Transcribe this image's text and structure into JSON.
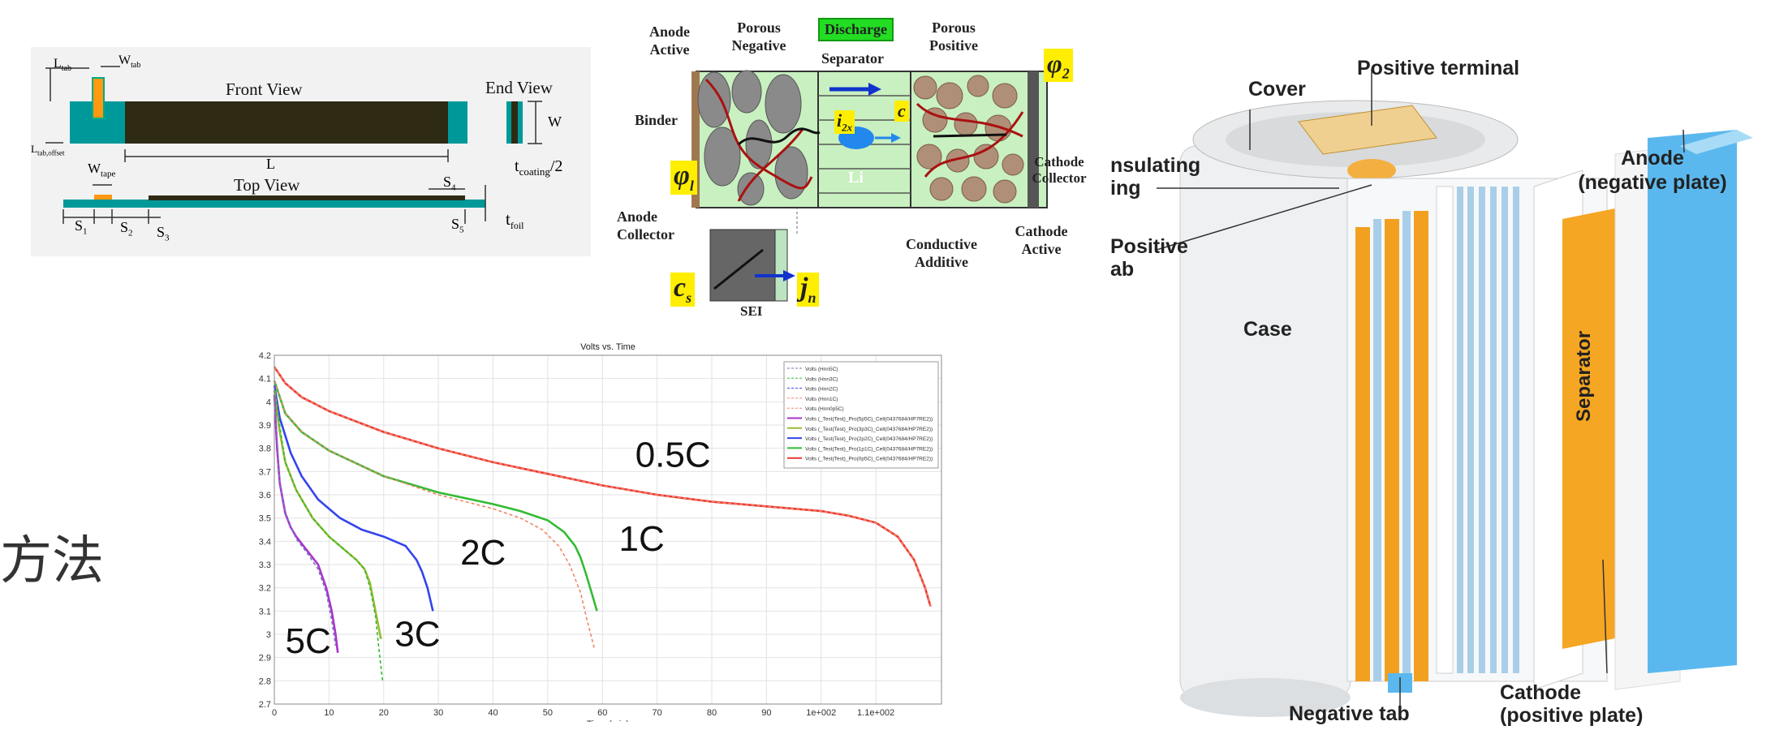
{
  "cjk_text": "方法",
  "dims": {
    "front_view": "Front View",
    "end_view": "End View",
    "top_view": "Top View",
    "l_tab": "L",
    "l_tab_sub": "tab",
    "w_tab": "W",
    "w_tab_sub": "tab",
    "l_tab_offset": "L",
    "l_tab_offset_sub": "tab,offset",
    "L": "L",
    "W": "W",
    "w_tape": "W",
    "w_tape_sub": "tape",
    "t_coating": "t",
    "t_coating_sub": "coating",
    "t_coating_suffix": "/2",
    "t_foil": "t",
    "t_foil_sub": "foil",
    "s1": "S",
    "s1_sub": "1",
    "s2": "S",
    "s2_sub": "2",
    "s3": "S",
    "s3_sub": "3",
    "s4": "S",
    "s4_sub": "4",
    "s5": "S",
    "s5_sub": "5"
  },
  "cell": {
    "anode_active": "Anode Active",
    "porous_negative": "Porous Negative",
    "discharge": "Discharge",
    "separator": "Separator",
    "porous_positive": "Porous Positive",
    "binder": "Binder",
    "anode_collector": "Anode Collector",
    "conductive_additive": "Conductive Additive",
    "cathode_active": "Cathode Active",
    "cathode_collector": "Cathode Collector",
    "sei": "SEI",
    "phi_l": "φ",
    "phi_l_sub": "l",
    "phi_2": "φ",
    "phi_2_sub": "2",
    "i2x": "i",
    "i2x_sub": "2x",
    "c": "c",
    "li": "Li",
    "cs": "c",
    "cs_sub": "s",
    "jn": "j",
    "jn_sub": "n"
  },
  "battery": {
    "cover": "Cover",
    "positive_terminal": "Positive terminal",
    "insulating_ring": "nsulating\ning",
    "positive_tab": "Positive\nab",
    "anode": "Anode\n(negative plate)",
    "case": "Case",
    "separator": "Separator",
    "negative_tab": "Negative tab",
    "cathode": "Cathode\n(positive plate)"
  },
  "chart_data": {
    "type": "line",
    "title": "Volts vs. Time",
    "xlabel": "Time (min)",
    "ylabel": "",
    "xlim": [
      0,
      122
    ],
    "ylim": [
      2.7,
      4.2
    ],
    "xticks": [
      "0",
      "10",
      "20",
      "30",
      "40",
      "50",
      "60",
      "70",
      "80",
      "90",
      "1e+002",
      "1.1e+002"
    ],
    "yticks": [
      "2.7",
      "2.8",
      "2.9",
      "3",
      "3.1",
      "3.2",
      "3.3",
      "3.4",
      "3.5",
      "3.6",
      "3.7",
      "3.8",
      "3.9",
      "4",
      "4.1",
      "4.2"
    ],
    "grid": true,
    "legend_position": "top-right",
    "legend": [
      "Volts (Hnn5C)",
      "Volts (Hnn3C)",
      "Volts (Hnn2C)",
      "Volts (Hnn1C)",
      "Volts (Hnn0p5C)",
      "Volts (_Test(Test)_Pro(5p5C)_Cell(0437684/HP7RE2))",
      "Volts (_Test(Test)_Pro(3p3C)_Cell(0437684/HP7RE2))",
      "Volts (_Test(Test)_Pro(2p2C)_Cell(0437684/HP7RE2))",
      "Volts (_Test(Test)_Pro(1p1C)_Cell(0437684/HP7RE2))",
      "Volts (_Test(Test)_Pro(0p5C)_Cell(0437684/HP7RE2))"
    ],
    "rate_labels": [
      {
        "text": "0.5C",
        "x": 66,
        "y": 3.72
      },
      {
        "text": "1C",
        "x": 63,
        "y": 3.36
      },
      {
        "text": "2C",
        "x": 34,
        "y": 3.3
      },
      {
        "text": "3C",
        "x": 22,
        "y": 2.95
      },
      {
        "text": "5C",
        "x": 2,
        "y": 2.92
      }
    ],
    "series": [
      {
        "rate": "0.5C",
        "color": "#ee3333",
        "dashed": false,
        "x": [
          0,
          2,
          5,
          10,
          20,
          30,
          40,
          50,
          60,
          70,
          80,
          90,
          100,
          105,
          110,
          114,
          117,
          119,
          120
        ],
        "y": [
          4.15,
          4.08,
          4.02,
          3.96,
          3.87,
          3.8,
          3.74,
          3.69,
          3.64,
          3.6,
          3.57,
          3.55,
          3.53,
          3.51,
          3.48,
          3.42,
          3.32,
          3.2,
          3.12
        ]
      },
      {
        "rate": "0.5C",
        "color": "#ee8866",
        "dashed": true,
        "x": [
          0,
          2,
          5,
          10,
          20,
          30,
          40,
          50,
          60,
          70,
          80,
          90,
          100,
          105,
          110,
          114,
          117,
          119,
          120
        ],
        "y": [
          4.15,
          4.08,
          4.02,
          3.96,
          3.87,
          3.8,
          3.74,
          3.69,
          3.64,
          3.6,
          3.57,
          3.55,
          3.53,
          3.51,
          3.48,
          3.42,
          3.32,
          3.2,
          3.12
        ]
      },
      {
        "rate": "1C",
        "color": "#33bb33",
        "dashed": false,
        "x": [
          0,
          2,
          5,
          10,
          20,
          30,
          40,
          45,
          50,
          53,
          55,
          56,
          57,
          58,
          59
        ],
        "y": [
          4.09,
          3.95,
          3.87,
          3.79,
          3.68,
          3.61,
          3.56,
          3.53,
          3.49,
          3.44,
          3.38,
          3.33,
          3.26,
          3.18,
          3.1
        ]
      },
      {
        "rate": "1C",
        "color": "#ee8866",
        "dashed": true,
        "x": [
          0,
          2,
          5,
          10,
          20,
          30,
          40,
          45,
          49,
          52,
          54,
          56,
          57,
          58.5
        ],
        "y": [
          4.09,
          3.95,
          3.87,
          3.79,
          3.68,
          3.6,
          3.54,
          3.5,
          3.45,
          3.38,
          3.3,
          3.18,
          3.08,
          2.94
        ]
      },
      {
        "rate": "2C",
        "color": "#3344ee",
        "dashed": false,
        "x": [
          0,
          1,
          3,
          5,
          8,
          12,
          16,
          20,
          24,
          26,
          27,
          28,
          29
        ],
        "y": [
          4.07,
          3.93,
          3.78,
          3.68,
          3.58,
          3.5,
          3.45,
          3.42,
          3.38,
          3.32,
          3.27,
          3.2,
          3.1
        ]
      },
      {
        "rate": "3C",
        "color": "#99bb33",
        "dashed": false,
        "x": [
          0,
          1,
          2,
          4,
          7,
          10,
          13,
          15,
          16.5,
          17.5,
          18.5,
          19.5
        ],
        "y": [
          4.05,
          3.87,
          3.74,
          3.62,
          3.5,
          3.42,
          3.36,
          3.32,
          3.28,
          3.22,
          3.1,
          2.98
        ]
      },
      {
        "rate": "3C",
        "color": "#33bb33",
        "dashed": true,
        "x": [
          0,
          2,
          4,
          7,
          10,
          13,
          15,
          16.5,
          17.5,
          18.5,
          19.2,
          19.8
        ],
        "y": [
          4.05,
          3.74,
          3.62,
          3.5,
          3.42,
          3.36,
          3.32,
          3.28,
          3.2,
          3.08,
          2.92,
          2.8
        ]
      },
      {
        "rate": "5C",
        "color": "#aa33cc",
        "dashed": false,
        "x": [
          0,
          0.5,
          1,
          2,
          3,
          4,
          6,
          8,
          9.5,
          10.5,
          11.2,
          11.6
        ],
        "y": [
          4.03,
          3.8,
          3.65,
          3.52,
          3.46,
          3.42,
          3.36,
          3.3,
          3.2,
          3.1,
          3.0,
          2.92
        ]
      },
      {
        "rate": "5C",
        "color": "#7777bb",
        "dashed": true,
        "x": [
          0,
          1,
          2,
          4,
          6,
          8,
          9.5,
          10.5,
          11.2
        ],
        "y": [
          4.03,
          3.65,
          3.52,
          3.41,
          3.35,
          3.28,
          3.18,
          3.06,
          2.95
        ]
      }
    ]
  }
}
